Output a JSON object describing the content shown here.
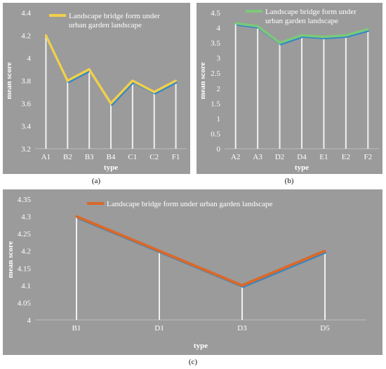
{
  "figure": {
    "panel_labels": [
      "(a)",
      "(b)",
      "(c)"
    ]
  },
  "colors": {
    "background": "#9b9b9b",
    "axis_text": "#ffffff",
    "shadow_line": "#2f87c8",
    "drop_line": "#ffffff"
  },
  "chart_data": [
    {
      "type": "line",
      "categories": [
        "A1",
        "B2",
        "B3",
        "B4",
        "C1",
        "C2",
        "F1"
      ],
      "series": [
        {
          "name": "Landscape bridge form under urban garden landscape",
          "values": [
            4.2,
            3.8,
            3.9,
            3.6,
            3.8,
            3.7,
            3.8
          ],
          "color": "#f2cf4a"
        }
      ],
      "xlabel": "type",
      "ylabel": "mean score",
      "ylim": [
        3.2,
        4.4
      ],
      "yticks": [
        "3.2",
        "3.4",
        "3.6",
        "3.8",
        "4",
        "4.2",
        "4.4"
      ],
      "grid": false,
      "legend": "top"
    },
    {
      "type": "line",
      "categories": [
        "A2",
        "A3",
        "D2",
        "D4",
        "E1",
        "E2",
        "F2"
      ],
      "series": [
        {
          "name": "Landscape bridge form under urban garden landscape",
          "values": [
            4.15,
            4.05,
            3.5,
            3.75,
            3.7,
            3.75,
            3.95
          ],
          "color": "#7cc97a"
        }
      ],
      "xlabel": "type",
      "ylabel": "mean score",
      "ylim": [
        0,
        4.5
      ],
      "yticks": [
        "0",
        "0.5",
        "1",
        "1.5",
        "2",
        "2.5",
        "3",
        "3.5",
        "4",
        "4.5"
      ],
      "grid": false,
      "legend": "top"
    },
    {
      "type": "line",
      "categories": [
        "B1",
        "D1",
        "D3",
        "D5"
      ],
      "series": [
        {
          "name": "Landscape bridge form under urban garden landscape",
          "values": [
            4.3,
            4.2,
            4.1,
            4.2
          ],
          "color": "#d9692a"
        }
      ],
      "xlabel": "type",
      "ylabel": "mean score",
      "ylim": [
        4.0,
        4.35
      ],
      "yticks": [
        "4",
        "4.05",
        "4.1",
        "4.15",
        "4.2",
        "4.25",
        "4.3",
        "4.35"
      ],
      "grid": false,
      "legend": "top"
    }
  ]
}
